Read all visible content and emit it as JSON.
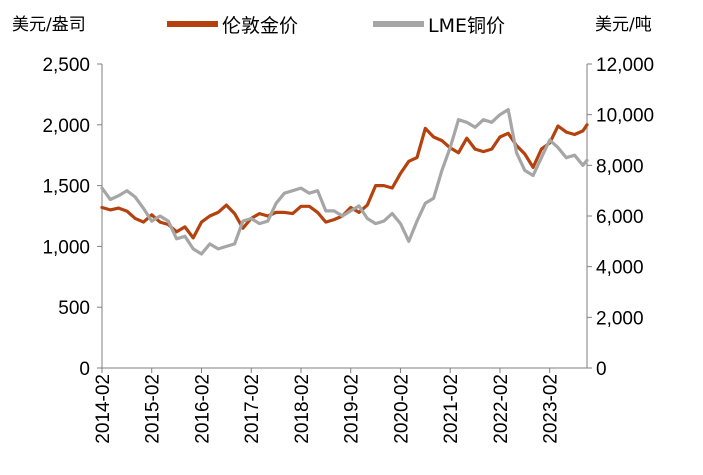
{
  "chart_data": {
    "type": "line",
    "left_axis_unit": "美元/盎司",
    "right_axis_unit": "美元/吨",
    "left_ylim": [
      0,
      2500
    ],
    "right_ylim": [
      0,
      12000
    ],
    "left_ticks": [
      "0",
      "500",
      "1,000",
      "1,500",
      "2,000",
      "2,500"
    ],
    "right_ticks": [
      "0",
      "2,000",
      "4,000",
      "6,000",
      "8,000",
      "10,000",
      "12,000"
    ],
    "x_range": [
      "2014-02",
      "2023-11"
    ],
    "x_tick_labels": [
      "2014-02",
      "2015-02",
      "2016-02",
      "2017-02",
      "2018-02",
      "2019-02",
      "2020-02",
      "2021-02",
      "2022-02",
      "2023-02"
    ],
    "grid": false,
    "legend_position": "top",
    "series": [
      {
        "name": "伦敦金价",
        "axis": "left",
        "color": "#b5420e",
        "x": [
          "2014-02",
          "2014-04",
          "2014-06",
          "2014-08",
          "2014-10",
          "2014-12",
          "2015-02",
          "2015-04",
          "2015-06",
          "2015-08",
          "2015-10",
          "2015-12",
          "2016-02",
          "2016-04",
          "2016-06",
          "2016-08",
          "2016-10",
          "2016-12",
          "2017-02",
          "2017-04",
          "2017-06",
          "2017-08",
          "2017-10",
          "2017-12",
          "2018-02",
          "2018-04",
          "2018-06",
          "2018-08",
          "2018-10",
          "2018-12",
          "2019-02",
          "2019-04",
          "2019-06",
          "2019-08",
          "2019-10",
          "2019-12",
          "2020-02",
          "2020-04",
          "2020-06",
          "2020-08",
          "2020-10",
          "2020-12",
          "2021-02",
          "2021-04",
          "2021-06",
          "2021-08",
          "2021-10",
          "2021-12",
          "2022-02",
          "2022-04",
          "2022-06",
          "2022-08",
          "2022-10",
          "2022-12",
          "2023-02",
          "2023-04",
          "2023-06",
          "2023-08",
          "2023-10",
          "2023-11"
        ],
        "values": [
          1320,
          1300,
          1315,
          1290,
          1230,
          1200,
          1260,
          1200,
          1180,
          1120,
          1160,
          1070,
          1200,
          1250,
          1280,
          1340,
          1270,
          1150,
          1230,
          1270,
          1250,
          1280,
          1280,
          1270,
          1330,
          1330,
          1280,
          1200,
          1220,
          1250,
          1320,
          1280,
          1340,
          1500,
          1500,
          1480,
          1600,
          1700,
          1730,
          1970,
          1900,
          1870,
          1810,
          1770,
          1890,
          1800,
          1780,
          1800,
          1900,
          1930,
          1830,
          1760,
          1650,
          1800,
          1850,
          1990,
          1940,
          1920,
          1950,
          2000
        ]
      },
      {
        "name": "LME铜价",
        "axis": "right",
        "color": "#a6a6a6",
        "x": [
          "2014-02",
          "2014-04",
          "2014-06",
          "2014-08",
          "2014-10",
          "2014-12",
          "2015-02",
          "2015-04",
          "2015-06",
          "2015-08",
          "2015-10",
          "2015-12",
          "2016-02",
          "2016-04",
          "2016-06",
          "2016-08",
          "2016-10",
          "2016-12",
          "2017-02",
          "2017-04",
          "2017-06",
          "2017-08",
          "2017-10",
          "2017-12",
          "2018-02",
          "2018-04",
          "2018-06",
          "2018-08",
          "2018-10",
          "2018-12",
          "2019-02",
          "2019-04",
          "2019-06",
          "2019-08",
          "2019-10",
          "2019-12",
          "2020-02",
          "2020-04",
          "2020-06",
          "2020-08",
          "2020-10",
          "2020-12",
          "2021-02",
          "2021-04",
          "2021-06",
          "2021-08",
          "2021-10",
          "2021-12",
          "2022-02",
          "2022-04",
          "2022-06",
          "2022-08",
          "2022-10",
          "2022-12",
          "2023-02",
          "2023-04",
          "2023-06",
          "2023-08",
          "2023-10",
          "2023-11"
        ],
        "values": [
          7100,
          6650,
          6800,
          7000,
          6750,
          6300,
          5800,
          6000,
          5800,
          5100,
          5200,
          4700,
          4500,
          4900,
          4700,
          4800,
          4900,
          5800,
          5900,
          5700,
          5800,
          6500,
          6900,
          7000,
          7100,
          6900,
          7000,
          6200,
          6200,
          6000,
          6200,
          6400,
          5900,
          5700,
          5800,
          6100,
          5700,
          5000,
          5800,
          6500,
          6700,
          7800,
          8700,
          9800,
          9700,
          9500,
          9800,
          9700,
          10000,
          10200,
          8500,
          7800,
          7600,
          8300,
          9000,
          8700,
          8300,
          8400,
          8000,
          8200
        ]
      }
    ]
  }
}
